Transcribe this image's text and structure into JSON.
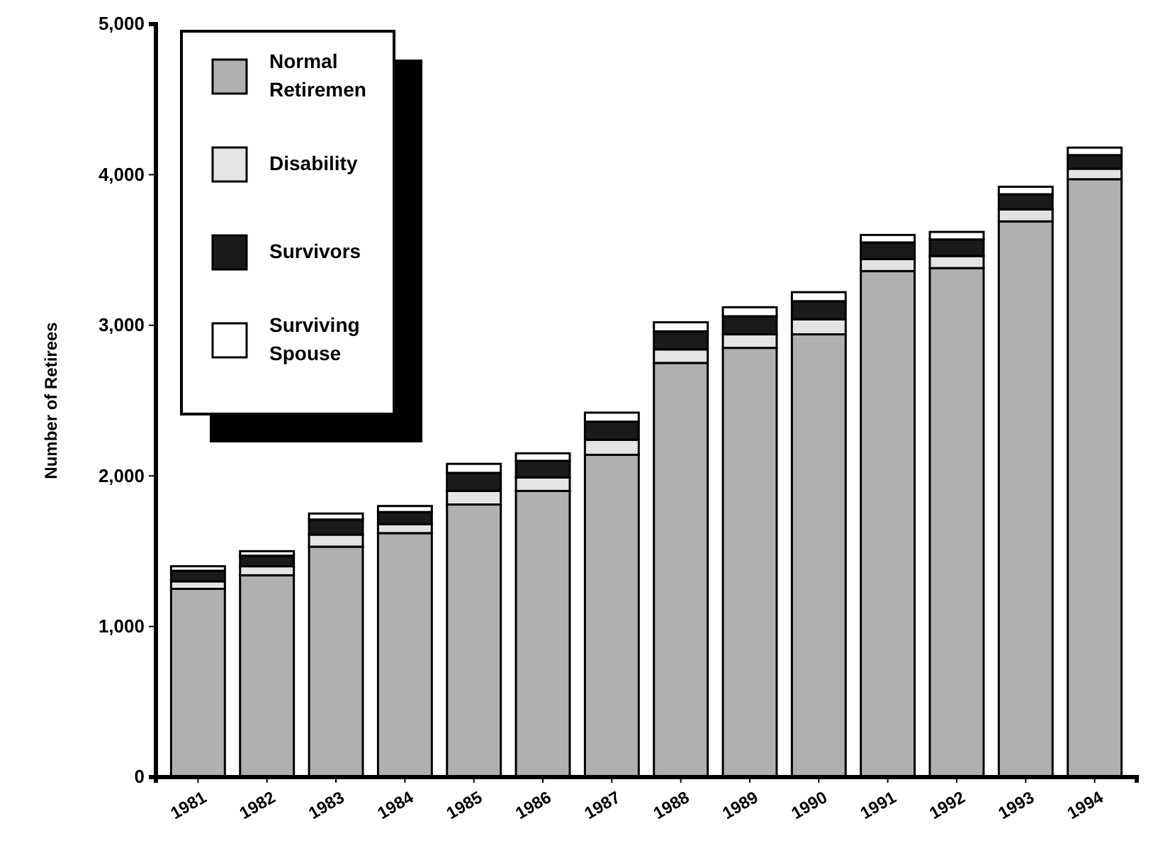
{
  "chart_data": {
    "type": "bar",
    "stacked": true,
    "ylabel": "Number of Retirees",
    "categories": [
      "1981",
      "1982",
      "1983",
      "1984",
      "1985",
      "1986",
      "1987",
      "1988",
      "1989",
      "1990",
      "1991",
      "1992",
      "1993",
      "1994"
    ],
    "series": [
      {
        "name": "Normal Retiremen",
        "color": "#b0b0b0",
        "values": [
          1250,
          1340,
          1530,
          1620,
          1810,
          1900,
          2140,
          2750,
          2850,
          2940,
          3360,
          3380,
          3690,
          3970
        ]
      },
      {
        "name": "Disability",
        "color": "#e4e4e4",
        "values": [
          50,
          60,
          80,
          60,
          90,
          90,
          100,
          90,
          90,
          100,
          80,
          80,
          80,
          70
        ]
      },
      {
        "name": "Survivors",
        "color": "#1a1a1a",
        "values": [
          70,
          70,
          100,
          80,
          120,
          110,
          120,
          120,
          120,
          120,
          110,
          110,
          100,
          90
        ]
      },
      {
        "name": "Surviving Spouse",
        "color": "#ffffff",
        "values": [
          30,
          30,
          40,
          40,
          60,
          50,
          60,
          60,
          60,
          60,
          50,
          50,
          50,
          50
        ]
      }
    ],
    "ylim": [
      0,
      5000
    ],
    "yticks": [
      0,
      {
        "value": 1000,
        "label": "1,000"
      },
      {
        "value": 2000,
        "label": "2,000"
      },
      {
        "value": 3000,
        "label": "3,000"
      },
      {
        "value": 4000,
        "label": "4,000"
      },
      {
        "value": 5000,
        "label": "5,000"
      }
    ],
    "legend": "top left"
  }
}
